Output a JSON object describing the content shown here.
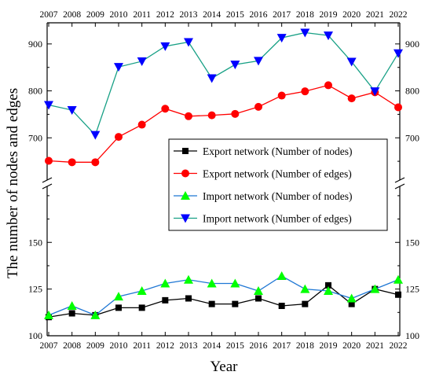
{
  "chart_data": {
    "type": "line",
    "xlabel": "Year",
    "ylabel": "The number of nodes and edges",
    "x": [
      2007,
      2008,
      2009,
      2010,
      2011,
      2012,
      2013,
      2014,
      2015,
      2016,
      2017,
      2018,
      2019,
      2020,
      2021,
      2022
    ],
    "broken_y_axis": true,
    "upper_panel": {
      "ylim": [
        610,
        945
      ],
      "yticks": [
        700,
        800,
        900
      ]
    },
    "lower_panel": {
      "ylim": [
        100,
        180
      ],
      "yticks": [
        100,
        125,
        150
      ]
    },
    "legend_position": "center-right",
    "series": [
      {
        "name": "Export network (Number of nodes)",
        "panel": "lower",
        "marker": "square",
        "color": "#000000",
        "values": [
          110,
          112,
          111,
          115,
          115,
          119,
          120,
          117,
          117,
          120,
          116,
          117,
          127,
          117,
          125,
          122
        ]
      },
      {
        "name": "Export network (Number of edges)",
        "panel": "upper",
        "marker": "circle",
        "color": "#ff0000",
        "values": [
          651,
          648,
          648,
          702,
          728,
          762,
          746,
          748,
          751,
          766,
          790,
          799,
          812,
          784,
          797,
          765
        ]
      },
      {
        "name": "Import network (Number of nodes)",
        "panel": "lower",
        "marker": "triangle-up",
        "color": "#00ff00",
        "line_color": "#1f77d4",
        "values": [
          111,
          116,
          111,
          121,
          124,
          128,
          130,
          128,
          128,
          124,
          132,
          125,
          124,
          120,
          125,
          130
        ]
      },
      {
        "name": "Import network (Number of edges)",
        "panel": "upper",
        "marker": "triangle-down",
        "color": "#0000ff",
        "line_color": "#17a085",
        "values": [
          770,
          759,
          706,
          851,
          863,
          895,
          904,
          827,
          856,
          864,
          913,
          924,
          918,
          862,
          799,
          880
        ]
      }
    ]
  }
}
